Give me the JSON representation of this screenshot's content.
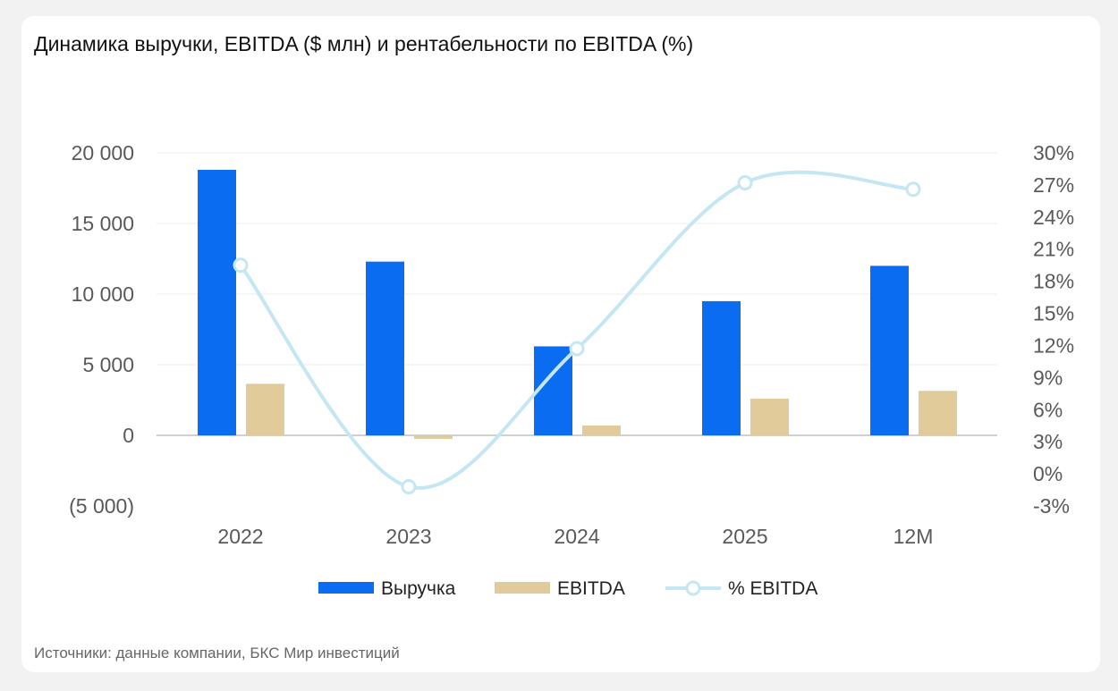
{
  "title": "Динамика выручки, EBITDA ($ млн) и рентабельности по EBITDA (%)",
  "source": "Источники: данные компании, БКС Мир инвестиций",
  "chart_data": {
    "type": "bar+line",
    "categories": [
      "2022",
      "2023",
      "2024",
      "2025",
      "12M"
    ],
    "series": [
      {
        "name": "Выручка",
        "type": "bar",
        "axis": "left",
        "color": "#0a6cf0",
        "values": [
          18800,
          12300,
          6300,
          9500,
          12000
        ]
      },
      {
        "name": "EBITDA",
        "type": "bar",
        "axis": "left",
        "color": "#e2cb9b",
        "values": [
          3650,
          -250,
          700,
          2600,
          3150
        ]
      },
      {
        "name": "% EBITDA",
        "type": "line",
        "axis": "right",
        "color": "#c5e6f3",
        "smooth": true,
        "markers": "hollow-circle",
        "values": [
          19.5,
          -1.2,
          11.7,
          27.2,
          26.6
        ]
      }
    ],
    "y_left": {
      "range": [
        -5000,
        20000
      ],
      "ticks": [
        20000,
        15000,
        10000,
        5000,
        0,
        -5000
      ],
      "tick_labels": [
        "20 000",
        "15 000",
        "10 000",
        "5 000",
        "0",
        "(5 000)"
      ]
    },
    "y_right": {
      "range": [
        -3,
        30
      ],
      "ticks": [
        30,
        27,
        24,
        21,
        18,
        15,
        12,
        9,
        6,
        3,
        0,
        -3
      ],
      "tick_labels": [
        "30%",
        "27%",
        "24%",
        "21%",
        "18%",
        "15%",
        "12%",
        "9%",
        "6%",
        "3%",
        "0%",
        "-3%"
      ]
    },
    "grid": true,
    "legend": "bottom"
  }
}
